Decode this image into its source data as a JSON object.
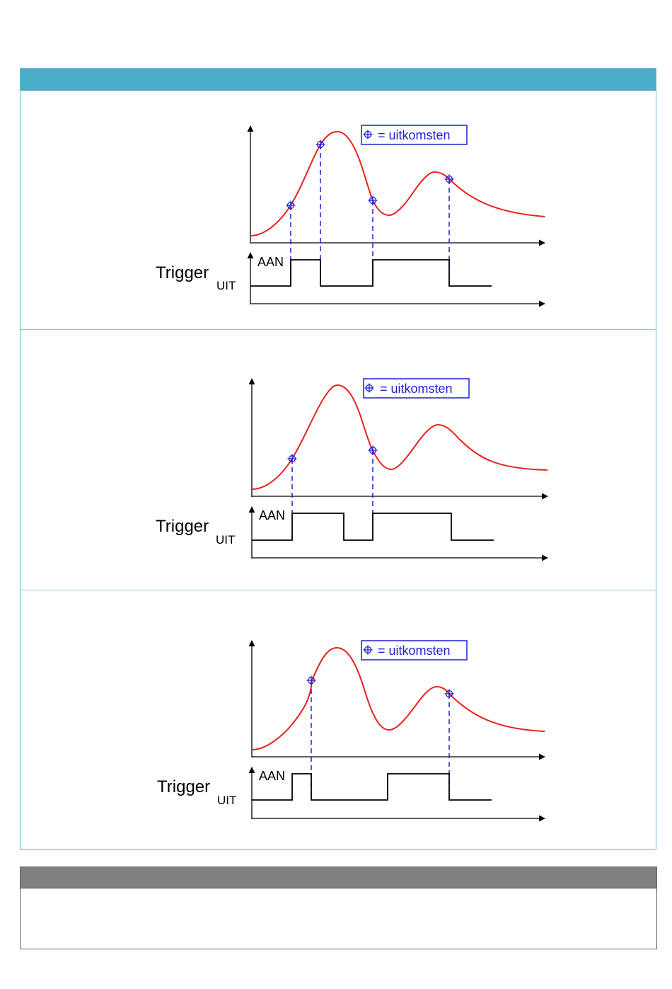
{
  "legend_text": "= uitkomsten",
  "trigger_label": "Trigger",
  "trigger_subscript": "UIT",
  "on_label": "AAN",
  "colors": {
    "header_blue": "#4aaecb",
    "box_border": "#6fb6cf",
    "note_header_gray": "#808080",
    "curve_red": "#e8201c",
    "outcome_blue": "#1f1fd6",
    "axis_black": "#000000"
  },
  "diagrams": [
    {
      "outcome_count": 4
    },
    {
      "outcome_count": 2
    },
    {
      "outcome_count": 2
    }
  ]
}
